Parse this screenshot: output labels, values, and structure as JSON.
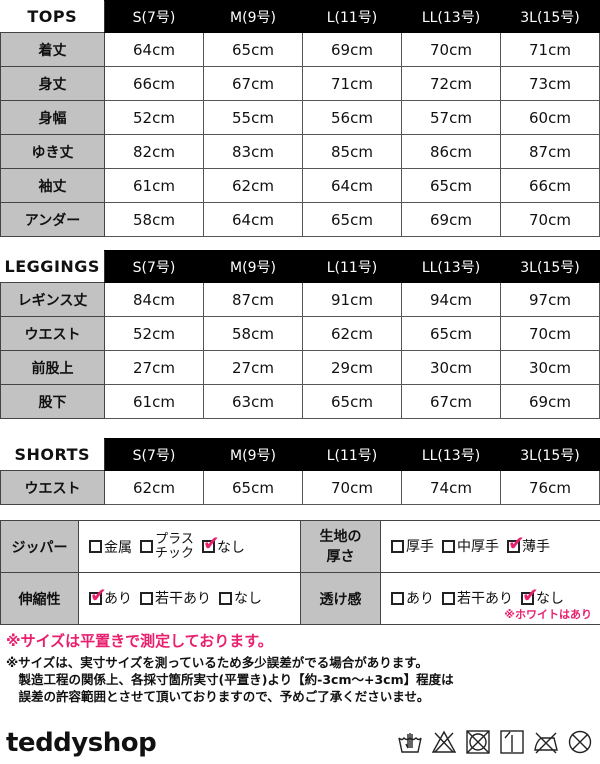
{
  "sizes": [
    "S(7号)",
    "M(9号)",
    "L(11号)",
    "LL(13号)",
    "3L(15号)"
  ],
  "tops": {
    "title": "TOPS",
    "rows": [
      {
        "label": "着丈",
        "values": [
          "64cm",
          "65cm",
          "69cm",
          "70cm",
          "71cm"
        ]
      },
      {
        "label": "身丈",
        "values": [
          "66cm",
          "67cm",
          "71cm",
          "72cm",
          "73cm"
        ]
      },
      {
        "label": "身幅",
        "values": [
          "52cm",
          "55cm",
          "56cm",
          "57cm",
          "60cm"
        ]
      },
      {
        "label": "ゆき丈",
        "values": [
          "82cm",
          "83cm",
          "85cm",
          "86cm",
          "87cm"
        ]
      },
      {
        "label": "袖丈",
        "values": [
          "61cm",
          "62cm",
          "64cm",
          "65cm",
          "66cm"
        ]
      },
      {
        "label": "アンダー",
        "values": [
          "58cm",
          "64cm",
          "65cm",
          "69cm",
          "70cm"
        ]
      }
    ]
  },
  "leggings": {
    "title": "LEGGINGS",
    "rows": [
      {
        "label": "レギンス丈",
        "values": [
          "84cm",
          "87cm",
          "91cm",
          "94cm",
          "97cm"
        ]
      },
      {
        "label": "ウエスト",
        "values": [
          "52cm",
          "58cm",
          "62cm",
          "65cm",
          "70cm"
        ]
      },
      {
        "label": "前股上",
        "values": [
          "27cm",
          "27cm",
          "29cm",
          "30cm",
          "30cm"
        ]
      },
      {
        "label": "股下",
        "values": [
          "61cm",
          "63cm",
          "65cm",
          "67cm",
          "69cm"
        ]
      }
    ]
  },
  "shorts": {
    "title": "SHORTS",
    "rows": [
      {
        "label": "ウエスト",
        "values": [
          "62cm",
          "65cm",
          "70cm",
          "74cm",
          "76cm"
        ]
      }
    ]
  },
  "attributes": {
    "zipper": {
      "label": "ジッパー",
      "options": [
        {
          "text": "金属",
          "checked": false
        },
        {
          "text": "プラス\nチック",
          "checked": false
        },
        {
          "text": "なし",
          "checked": true
        }
      ]
    },
    "thickness": {
      "label": "生地の\n厚さ",
      "options": [
        {
          "text": "厚手",
          "checked": false
        },
        {
          "text": "中厚手",
          "checked": false
        },
        {
          "text": "薄手",
          "checked": true
        }
      ]
    },
    "stretch": {
      "label": "伸縮性",
      "options": [
        {
          "text": "あり",
          "checked": true
        },
        {
          "text": "若干あり",
          "checked": false
        },
        {
          "text": "なし",
          "checked": false
        }
      ]
    },
    "sheer": {
      "label": "透け感",
      "options": [
        {
          "text": "あり",
          "checked": false
        },
        {
          "text": "若干あり",
          "checked": false
        },
        {
          "text": "なし",
          "checked": true
        }
      ],
      "note": "※ホワイトはあり"
    }
  },
  "notes": {
    "pink": "※サイズは平置きで測定しております。",
    "lines": [
      "※サイズは、実寸サイズを測っているため多少誤差がでる場合があります。",
      "　製造工程の関係上、各採寸箇所実寸(平置き)より【約-3cm～+3cm】程度は",
      "　誤差の許容範囲とさせて頂いておりますので、予めご了承くださいませ。"
    ]
  },
  "brand": "teddyshop",
  "care_icons": [
    "hand-wash-icon",
    "no-bleach-icon",
    "no-tumble-dry-icon",
    "line-dry-icon",
    "no-iron-icon",
    "no-dry-clean-icon"
  ],
  "colors": {
    "accent": "#e8206e",
    "label_bg": "#c2c2c2",
    "header_bg": "#000000"
  }
}
